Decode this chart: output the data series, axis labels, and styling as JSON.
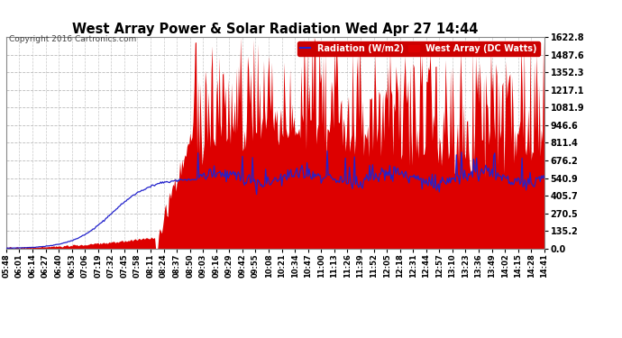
{
  "title": "West Array Power & Solar Radiation Wed Apr 27 14:44",
  "copyright": "Copyright 2016 Cartronics.com",
  "legend_radiation": "Radiation (W/m2)",
  "legend_west": "West Array (DC Watts)",
  "y_ticks": [
    0.0,
    135.2,
    270.5,
    405.7,
    540.9,
    676.2,
    811.4,
    946.6,
    1081.9,
    1217.1,
    1352.3,
    1487.6,
    1622.8
  ],
  "ylim": [
    0,
    1622.8
  ],
  "background_color": "#ffffff",
  "plot_bg_color": "#ffffff",
  "grid_color": "#bbbbbb",
  "bar_color": "#dd0000",
  "line_color": "#2222cc",
  "title_color": "#000000",
  "x_tick_labels": [
    "05:48",
    "06:01",
    "06:14",
    "06:27",
    "06:40",
    "06:53",
    "07:06",
    "07:19",
    "07:32",
    "07:45",
    "07:58",
    "08:11",
    "08:24",
    "08:37",
    "08:50",
    "09:03",
    "09:16",
    "09:29",
    "09:42",
    "09:55",
    "10:08",
    "10:21",
    "10:34",
    "10:47",
    "11:00",
    "11:13",
    "11:26",
    "11:39",
    "11:52",
    "12:05",
    "12:18",
    "12:31",
    "12:44",
    "12:57",
    "13:10",
    "13:23",
    "13:36",
    "13:49",
    "14:02",
    "14:15",
    "14:28",
    "14:41"
  ]
}
